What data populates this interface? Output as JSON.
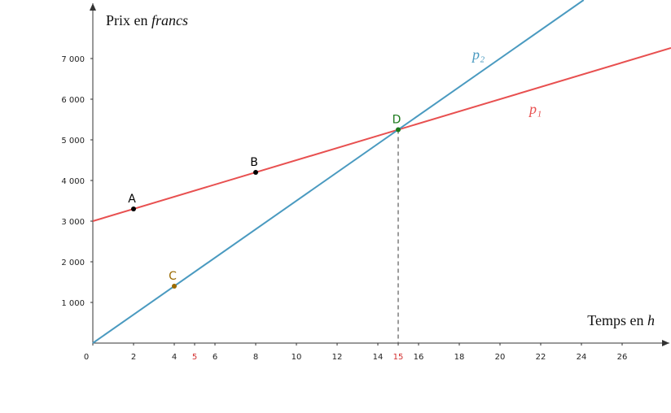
{
  "chart_data": {
    "type": "line",
    "x_label": {
      "text": "Temps en ",
      "var": "h"
    },
    "y_label": {
      "text": "Prix en ",
      "var": "francs"
    },
    "xlim": [
      0,
      28.4
    ],
    "ylim": [
      0,
      8440
    ],
    "xticks": [
      0,
      2,
      4,
      6,
      8,
      10,
      12,
      14,
      16,
      18,
      20,
      22,
      24,
      26
    ],
    "extra_xticks": [
      5,
      15
    ],
    "extra_xtick_color": "#d32f2f",
    "yticks": [
      {
        "value": 1000,
        "label": "1 000"
      },
      {
        "value": 2000,
        "label": "2 000"
      },
      {
        "value": 3000,
        "label": "3 000"
      },
      {
        "value": 4000,
        "label": "4 000"
      },
      {
        "value": 5000,
        "label": "5 000"
      },
      {
        "value": 6000,
        "label": "6 000"
      },
      {
        "value": 7000,
        "label": "7 000"
      }
    ],
    "series": [
      {
        "name": "p₁",
        "color": "#e85050",
        "x": [
          0,
          28.4
        ],
        "values": [
          3000,
          7260
        ]
      },
      {
        "name": "p₂",
        "color": "#4a9ac0",
        "x": [
          0,
          24.11
        ],
        "values": [
          0,
          8440
        ]
      }
    ],
    "points": [
      {
        "label": "A",
        "x": 2,
        "y": 3300,
        "color": "#000000"
      },
      {
        "label": "B",
        "x": 8,
        "y": 4200,
        "color": "#000000"
      },
      {
        "label": "C",
        "x": 4,
        "y": 1400,
        "color": "#9a6a00"
      },
      {
        "label": "D",
        "x": 15,
        "y": 5250,
        "color": "#1b7a1b"
      }
    ]
  }
}
